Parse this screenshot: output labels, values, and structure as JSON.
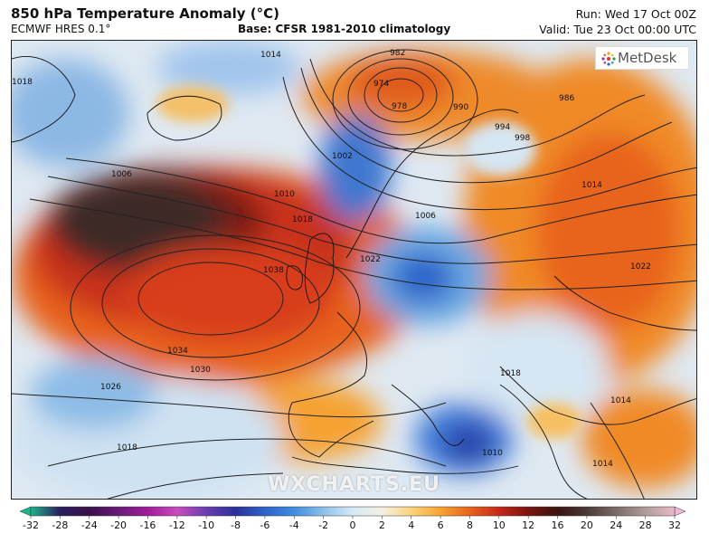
{
  "header": {
    "title": "850 hPa Temperature Anomaly (°C)",
    "model": "ECMWF HRES 0.1°",
    "base": "Base: CFSR 1981-2010 climatology",
    "run": "Run: Wed 17 Oct 00Z",
    "valid": "Valid: Tue 23 Oct 00:00 UTC"
  },
  "logo": {
    "text": "MetDesk",
    "icon": "metdesk-logo-icon"
  },
  "watermark": "WXCHARTS.EU",
  "legend": {
    "ticks": [
      "-32",
      "-28",
      "-24",
      "-20",
      "-16",
      "-12",
      "-10",
      "-8",
      "-6",
      "-4",
      "-2",
      "0",
      "2",
      "4",
      "6",
      "8",
      "10",
      "12",
      "16",
      "20",
      "24",
      "28",
      "32"
    ],
    "colors": [
      "#1fb38a",
      "#2a1e5c",
      "#3a0f4a",
      "#6a1a7a",
      "#a01c9a",
      "#c84cc0",
      "#6a3cb0",
      "#2a2f9a",
      "#2c63c9",
      "#3f8de0",
      "#8cc0ea",
      "#d7e9f6",
      "#f4f1e4",
      "#fbd37a",
      "#f6a431",
      "#e8631c",
      "#c4281a",
      "#7a1410",
      "#3a1410",
      "#4a3a38",
      "#7a6a68",
      "#b09c9a",
      "#e8b8c8"
    ],
    "arrow_left_color": "#1fb38a",
    "arrow_right_color": "#f0b8d8"
  },
  "isobar_labels": [
    {
      "text": "1014"
    },
    {
      "text": "982"
    },
    {
      "text": "974"
    },
    {
      "text": "978"
    },
    {
      "text": "990"
    },
    {
      "text": "986"
    },
    {
      "text": "994"
    },
    {
      "text": "998"
    },
    {
      "text": "1002"
    },
    {
      "text": "1006"
    },
    {
      "text": "1006"
    },
    {
      "text": "1010"
    },
    {
      "text": "1014"
    },
    {
      "text": "1018"
    },
    {
      "text": "1018"
    },
    {
      "text": "1022"
    },
    {
      "text": "1022"
    },
    {
      "text": "1038"
    },
    {
      "text": "1034"
    },
    {
      "text": "1030"
    },
    {
      "text": "1026"
    },
    {
      "text": "1018"
    },
    {
      "text": "1018"
    },
    {
      "text": "1014"
    },
    {
      "text": "1010"
    },
    {
      "text": "1014"
    }
  ]
}
